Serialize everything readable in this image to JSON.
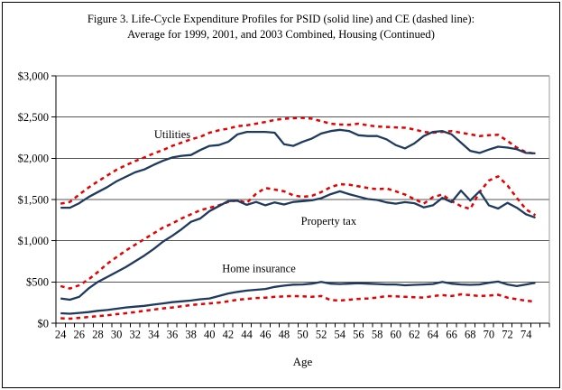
{
  "figure": {
    "title_line1": "Figure 3. Life-Cycle Expenditure Profiles for PSID (solid line) and CE (dashed line):",
    "title_line2": "Average for 1999, 2001, and 2003 Combined, Housing (Continued)"
  },
  "chart_data": {
    "type": "line",
    "title": "Figure 3. Life-Cycle Expenditure Profiles for PSID (solid line) and CE (dashed line): Average for 1999, 2001, and 2003 Combined, Housing (Continued)",
    "xlabel": "Age",
    "ylabel": "",
    "grid": true,
    "legend_position": "none (inline annotations)",
    "x": [
      24,
      25,
      26,
      27,
      28,
      29,
      30,
      31,
      32,
      33,
      34,
      35,
      36,
      37,
      38,
      39,
      40,
      41,
      42,
      43,
      44,
      45,
      46,
      47,
      48,
      49,
      50,
      51,
      52,
      53,
      54,
      55,
      56,
      57,
      58,
      59,
      60,
      61,
      62,
      63,
      64,
      65,
      66,
      67,
      68,
      69,
      70,
      71,
      72,
      73,
      74,
      75
    ],
    "x_tick_labels": [
      "24",
      "26",
      "28",
      "30",
      "32",
      "34",
      "36",
      "38",
      "40",
      "42",
      "44",
      "46",
      "48",
      "50",
      "52",
      "54",
      "56",
      "58",
      "60",
      "62",
      "64",
      "66",
      "68",
      "70",
      "72",
      "74"
    ],
    "xlim": [
      24,
      75
    ],
    "ylim": [
      0,
      3000
    ],
    "yticks": [
      0,
      500,
      1000,
      1500,
      2000,
      2500,
      3000
    ],
    "ytick_labels": [
      "$0",
      "$500",
      "$1,000",
      "$1,500",
      "$2,000",
      "$2,500",
      "$3,000"
    ],
    "colors": {
      "psid_solid": "#1f3a5f",
      "ce_dashed": "#e80000",
      "gridline": "#555555",
      "axis": "#000000",
      "plot_right_border": "#999999"
    },
    "line_styles": {
      "psid": "solid",
      "ce": "dashed"
    },
    "annotations": [
      {
        "text": "Utilities",
        "age": 36.0,
        "value": 2290
      },
      {
        "text": "Property tax",
        "age": 52.8,
        "value": 1235
      },
      {
        "text": "Home insurance",
        "age": 45.3,
        "value": 660
      }
    ],
    "series": [
      {
        "name": "Utilities PSID",
        "category": "Utilities",
        "source": "PSID",
        "style": "solid",
        "values": [
          1400,
          1400,
          1455,
          1530,
          1590,
          1650,
          1720,
          1775,
          1830,
          1865,
          1920,
          1970,
          2010,
          2030,
          2040,
          2100,
          2150,
          2160,
          2200,
          2290,
          2320,
          2320,
          2320,
          2310,
          2170,
          2150,
          2200,
          2240,
          2300,
          2330,
          2345,
          2330,
          2280,
          2270,
          2270,
          2230,
          2160,
          2120,
          2180,
          2270,
          2320,
          2330,
          2290,
          2190,
          2090,
          2065,
          2105,
          2140,
          2130,
          2110,
          2065,
          2060
        ]
      },
      {
        "name": "Utilities CE",
        "category": "Utilities",
        "source": "CE",
        "style": "dashed",
        "values": [
          1450,
          1470,
          1560,
          1645,
          1720,
          1790,
          1860,
          1915,
          1965,
          2010,
          2060,
          2100,
          2150,
          2190,
          2230,
          2260,
          2310,
          2340,
          2360,
          2390,
          2400,
          2420,
          2440,
          2465,
          2480,
          2485,
          2490,
          2480,
          2450,
          2420,
          2410,
          2405,
          2420,
          2400,
          2385,
          2380,
          2375,
          2370,
          2350,
          2320,
          2310,
          2320,
          2330,
          2310,
          2290,
          2270,
          2280,
          2285,
          2210,
          2130,
          2075,
          2055
        ]
      },
      {
        "name": "Property tax PSID",
        "category": "Property tax",
        "source": "PSID",
        "style": "solid",
        "values": [
          300,
          285,
          320,
          420,
          500,
          560,
          620,
          680,
          750,
          820,
          900,
          990,
          1060,
          1140,
          1230,
          1270,
          1360,
          1420,
          1480,
          1485,
          1435,
          1470,
          1430,
          1465,
          1440,
          1470,
          1480,
          1490,
          1515,
          1565,
          1600,
          1565,
          1535,
          1505,
          1495,
          1465,
          1450,
          1468,
          1455,
          1405,
          1430,
          1520,
          1468,
          1608,
          1488,
          1600,
          1430,
          1390,
          1460,
          1400,
          1320,
          1280
        ]
      },
      {
        "name": "Property tax CE",
        "category": "Property tax",
        "source": "CE",
        "style": "dashed",
        "values": [
          450,
          420,
          460,
          530,
          620,
          720,
          800,
          880,
          950,
          1020,
          1090,
          1160,
          1210,
          1270,
          1320,
          1370,
          1400,
          1430,
          1470,
          1490,
          1460,
          1570,
          1640,
          1620,
          1600,
          1550,
          1532,
          1545,
          1590,
          1650,
          1685,
          1680,
          1660,
          1640,
          1625,
          1635,
          1600,
          1560,
          1505,
          1450,
          1530,
          1560,
          1480,
          1420,
          1385,
          1590,
          1730,
          1780,
          1670,
          1520,
          1380,
          1310
        ]
      },
      {
        "name": "Home insurance PSID",
        "category": "Home insurance",
        "source": "PSID",
        "style": "solid",
        "values": [
          120,
          115,
          125,
          135,
          150,
          160,
          175,
          190,
          200,
          210,
          225,
          240,
          255,
          265,
          275,
          290,
          300,
          330,
          360,
          380,
          395,
          405,
          415,
          440,
          455,
          467,
          470,
          480,
          500,
          480,
          475,
          480,
          485,
          480,
          475,
          470,
          470,
          460,
          465,
          470,
          475,
          500,
          480,
          470,
          465,
          470,
          490,
          505,
          470,
          450,
          470,
          490
        ]
      },
      {
        "name": "Home insurance CE",
        "category": "Home insurance",
        "source": "CE",
        "style": "dashed",
        "values": [
          60,
          55,
          65,
          75,
          85,
          95,
          110,
          120,
          135,
          150,
          165,
          180,
          190,
          205,
          220,
          230,
          240,
          250,
          265,
          285,
          295,
          305,
          310,
          320,
          325,
          330,
          325,
          320,
          330,
          280,
          275,
          285,
          295,
          300,
          310,
          330,
          325,
          320,
          315,
          310,
          330,
          340,
          330,
          350,
          340,
          330,
          335,
          345,
          310,
          290,
          273,
          262
        ]
      }
    ]
  }
}
